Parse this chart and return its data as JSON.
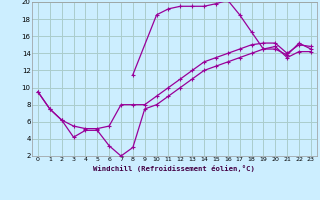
{
  "xlabel": "Windchill (Refroidissement éolien,°C)",
  "background_color": "#cceeff",
  "grid_color": "#aacccc",
  "line_color": "#990099",
  "xlim": [
    -0.5,
    23.5
  ],
  "ylim": [
    2,
    20
  ],
  "xticks": [
    0,
    1,
    2,
    3,
    4,
    5,
    6,
    7,
    8,
    9,
    10,
    11,
    12,
    13,
    14,
    15,
    16,
    17,
    18,
    19,
    20,
    21,
    22,
    23
  ],
  "yticks": [
    2,
    4,
    6,
    8,
    10,
    12,
    14,
    16,
    18,
    20
  ],
  "series1_x": [
    0,
    1,
    2,
    3,
    4,
    5,
    6,
    7,
    8,
    9,
    10,
    11,
    12,
    13,
    14,
    15,
    16,
    17,
    18,
    19,
    20,
    21,
    22,
    23
  ],
  "series1_y": [
    9.5,
    7.5,
    6.2,
    4.2,
    5.0,
    5.0,
    3.2,
    2.0,
    3.0,
    7.5,
    8.0,
    9.0,
    10.0,
    11.0,
    12.0,
    12.5,
    13.0,
    13.5,
    14.0,
    14.5,
    14.8,
    13.5,
    14.2,
    14.2
  ],
  "series2_x": [
    0,
    1,
    2,
    3,
    4,
    5,
    6,
    7,
    8,
    9,
    10,
    11,
    12,
    13,
    14,
    15,
    16,
    17,
    18,
    19,
    20,
    21,
    22,
    23
  ],
  "series2_y": [
    9.5,
    7.5,
    6.2,
    5.5,
    5.2,
    5.2,
    5.5,
    8.0,
    8.0,
    8.0,
    9.0,
    10.0,
    11.0,
    12.0,
    13.0,
    13.5,
    14.0,
    14.5,
    15.0,
    15.2,
    15.2,
    14.0,
    15.0,
    14.8
  ],
  "series3_x": [
    8,
    10,
    11,
    12,
    13,
    14,
    15,
    16,
    17,
    18,
    19,
    20,
    21,
    22,
    23
  ],
  "series3_y": [
    11.5,
    18.5,
    19.2,
    19.5,
    19.5,
    19.5,
    19.8,
    20.2,
    18.5,
    16.5,
    14.5,
    14.5,
    13.8,
    15.2,
    14.5
  ]
}
